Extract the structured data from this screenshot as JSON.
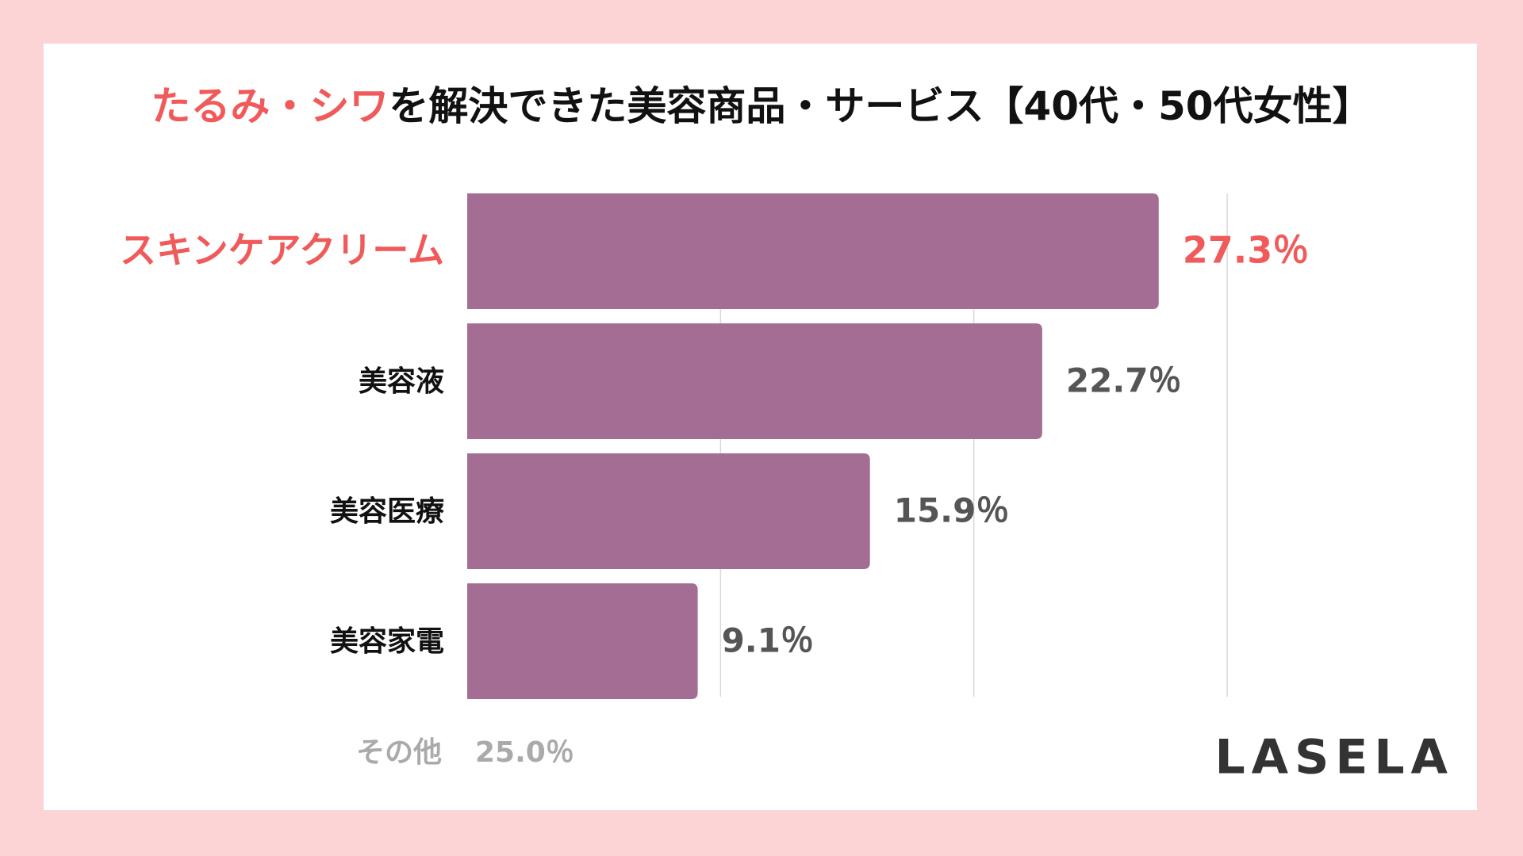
{
  "chart_data": {
    "type": "bar",
    "orientation": "horizontal",
    "title_parts": [
      "たるみ・シワ",
      "を解決できた美容商品・サービス【40代・50代女性】"
    ],
    "categories": [
      "スキンケアクリーム",
      "美容液",
      "美容医療",
      "美容家電"
    ],
    "values": [
      27.3,
      22.7,
      15.9,
      9.1
    ],
    "value_labels": [
      "27.3％",
      "22.7％",
      "15.9％",
      "9.1％"
    ],
    "color": "#a36d94",
    "highlight_color": "#f05a5a",
    "xlim": [
      0,
      30
    ],
    "xticks": [
      10,
      20,
      30
    ],
    "grid": true,
    "other_label": "その他",
    "other_value_label": "25.0％",
    "brand": "LASELA"
  }
}
